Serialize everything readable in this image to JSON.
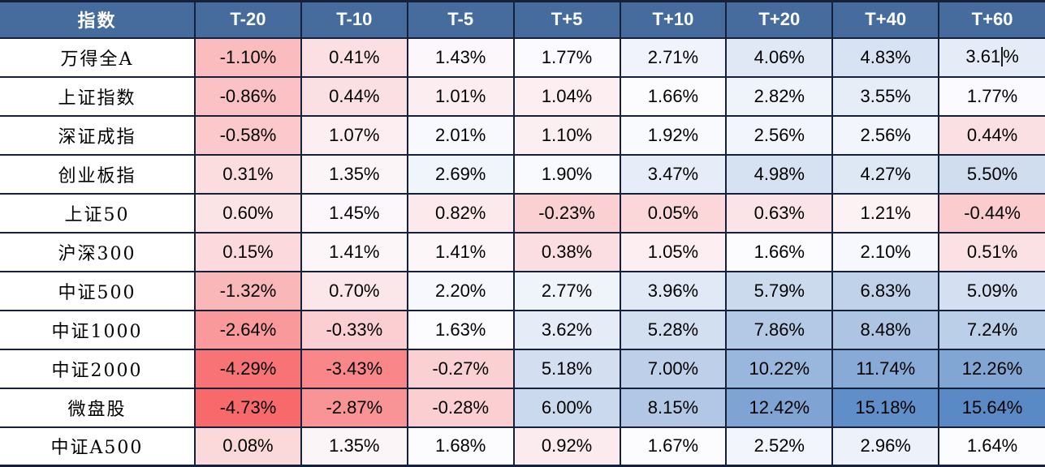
{
  "chart_data": {
    "type": "heatmap",
    "title": "",
    "row_header_label": "指数",
    "columns": [
      "T-20",
      "T-10",
      "T-5",
      "T+5",
      "T+10",
      "T+20",
      "T+40",
      "T+60"
    ],
    "rows": [
      "万得全A",
      "上证指数",
      "深证成指",
      "创业板指",
      "上证50",
      "沪深300",
      "中证500",
      "中证1000",
      "中证2000",
      "微盘股",
      "中证A500"
    ],
    "values": [
      [
        -1.1,
        0.41,
        1.43,
        1.77,
        2.71,
        4.06,
        4.83,
        3.61
      ],
      [
        -0.86,
        0.44,
        1.01,
        1.04,
        1.66,
        2.82,
        3.55,
        1.77
      ],
      [
        -0.58,
        1.07,
        2.01,
        1.1,
        1.92,
        2.56,
        2.56,
        0.44
      ],
      [
        0.31,
        1.35,
        2.69,
        1.9,
        3.47,
        4.98,
        4.27,
        5.5
      ],
      [
        0.6,
        1.45,
        0.82,
        -0.23,
        0.05,
        0.63,
        1.21,
        -0.44
      ],
      [
        0.15,
        1.41,
        1.41,
        0.38,
        1.05,
        1.66,
        2.1,
        0.51
      ],
      [
        -1.32,
        0.7,
        2.2,
        2.77,
        3.96,
        5.79,
        6.83,
        5.09
      ],
      [
        -2.64,
        -0.33,
        1.63,
        3.62,
        5.28,
        7.86,
        8.48,
        7.24
      ],
      [
        -4.29,
        -3.43,
        -0.27,
        5.18,
        7.0,
        10.22,
        11.74,
        12.26
      ],
      [
        -4.73,
        -2.87,
        -0.28,
        6.0,
        8.15,
        12.42,
        15.18,
        15.64
      ],
      [
        0.08,
        1.35,
        1.68,
        0.92,
        1.67,
        2.52,
        2.96,
        1.64
      ]
    ],
    "value_unit": "%",
    "value_decimals": 2,
    "color_scale": {
      "min": "#F8696B",
      "mid": "#FCFCFF",
      "max": "#5A8AC6",
      "midpoint_rule": "median"
    },
    "legend_position": "none",
    "grid": true
  },
  "style": {
    "header_bg": "#466B9D",
    "header_text_color": "#FFFFFF",
    "border_color": "#15213B",
    "cell_text_color": "#000000",
    "name_col_bg": "#FFFFFF"
  },
  "caret": {
    "row_index": 0,
    "col_index": 7
  }
}
